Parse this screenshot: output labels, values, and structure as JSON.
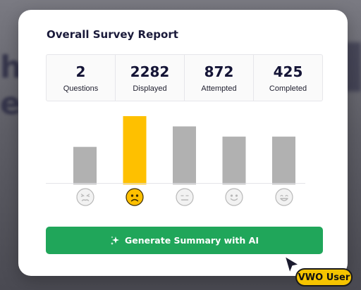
{
  "report": {
    "title": "Overall Survey Report",
    "stats": [
      {
        "value": "2",
        "label": "Questions"
      },
      {
        "value": "2282",
        "label": "Displayed"
      },
      {
        "value": "872",
        "label": "Attempted"
      },
      {
        "value": "425",
        "label": "Completed"
      }
    ]
  },
  "chart_data": {
    "type": "bar",
    "categories": [
      "very-unhappy",
      "unhappy",
      "neutral",
      "happy",
      "very-happy"
    ],
    "values": [
      0.55,
      1.0,
      0.85,
      0.7,
      0.7
    ],
    "highlight_index": 1,
    "colors": {
      "bar": "#b1b1b1",
      "highlight": "#fec000"
    }
  },
  "faces": [
    {
      "icon": "very-unhappy-face-icon",
      "color": "#f2f2f2",
      "stroke": "#b8b8b8"
    },
    {
      "icon": "unhappy-face-icon",
      "color": "#fec000",
      "stroke": "#3a2a00"
    },
    {
      "icon": "neutral-face-icon",
      "color": "#f2f2f2",
      "stroke": "#b8b8b8"
    },
    {
      "icon": "happy-face-icon",
      "color": "#f2f2f2",
      "stroke": "#b8b8b8"
    },
    {
      "icon": "very-happy-face-icon",
      "color": "#f2f2f2",
      "stroke": "#b8b8b8"
    }
  ],
  "actions": {
    "generate_label": "Generate Summary with AI",
    "generate_icon": "sparkle-icon",
    "color": "#20a65a"
  },
  "cursor": {
    "badge_label": "VWO User",
    "icon": "cursor-arrow-icon"
  }
}
